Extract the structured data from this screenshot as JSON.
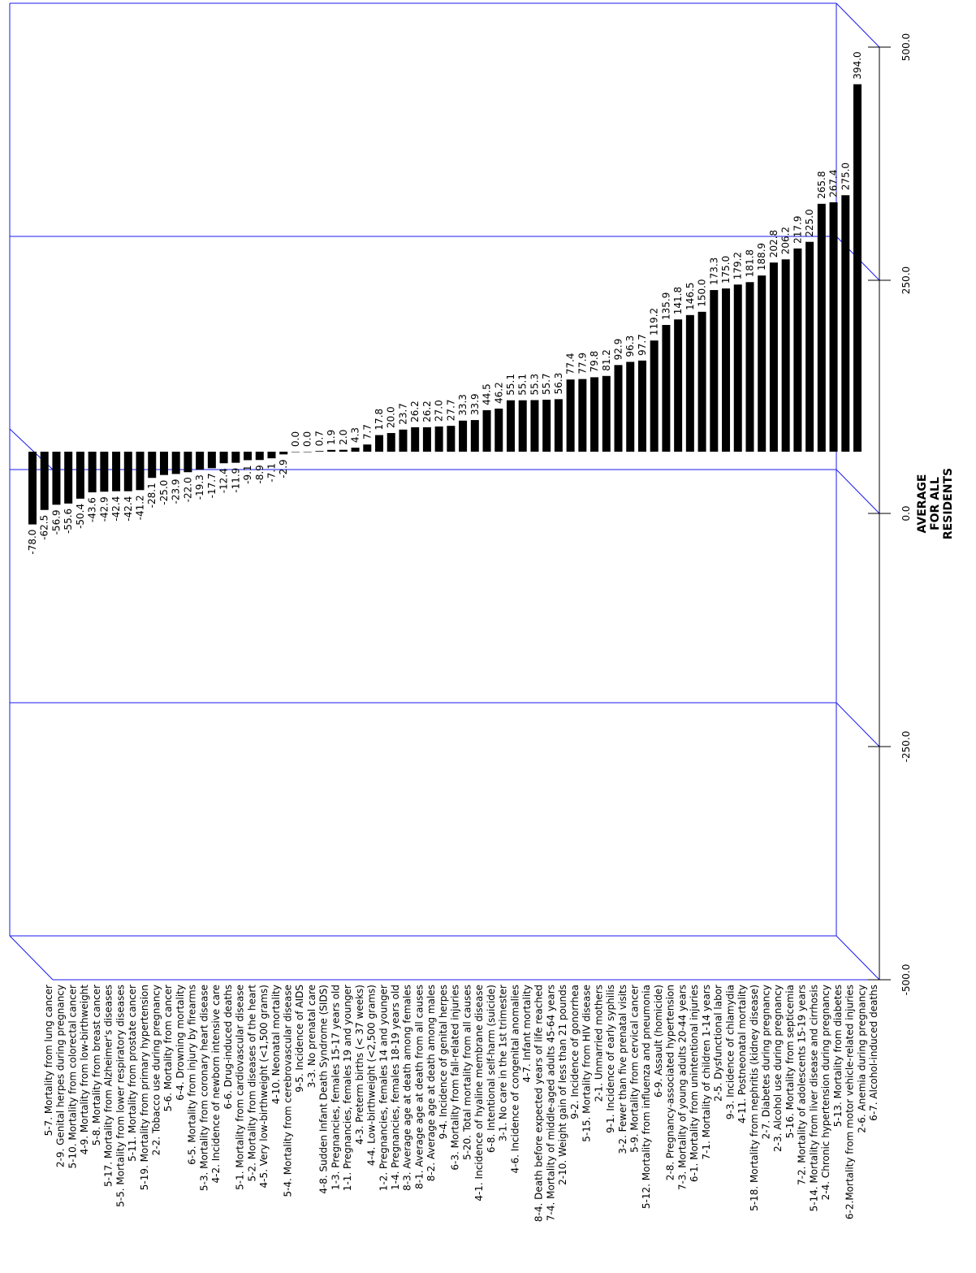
{
  "chart_data": {
    "type": "bar",
    "orientation": "horizontal",
    "xlabel": "AVERAGE FOR ALL RESIDENTS",
    "xlabel_lines": [
      "AVERAGE",
      "FOR ALL",
      "RESIDENTS"
    ],
    "xlim": [
      -500,
      500
    ],
    "ticks": [
      -500,
      -250,
      0,
      250,
      500
    ],
    "tick_labels": [
      "-500.0",
      "-250.0",
      "0.0",
      "250.0",
      "500.0"
    ],
    "grid": true,
    "colors": {
      "bar": "#000000",
      "frame": "#1a1aee"
    },
    "categories": [
      "5-7. Mortality from lung cancer",
      "2-9. Genital herpes during pregnancy",
      "5-10. Mortality from colorectal cancer",
      "4-9. Mortality from low-birthweight",
      "5-8. Mortality from breast cancer",
      "5-17. Mortality from Alzheimer's diseases",
      "5-5. Mortality from lower respiratory diseases",
      "5-11. Mortality from prostate cancer",
      "5-19. Mortality from primary hypertension",
      "2-2. Tobacco use during pregnancy",
      "5-6. Mortality from cancer",
      "6-4. Drowning mortality",
      "6-5. Mortality from injury by firearms",
      "5-3. Mortality from coronary heart disease",
      "4-2. Incidence of newborn intensive care",
      "6-6. Drug-induced deaths",
      "5-1. Mortality from cardiovascular disease",
      "5-2. Mortality from diseases of the heart",
      "4-5. Very low-birthweight (<1,500 grams)",
      "4-10. Neonatal mortality",
      "5-4. Mortality from cerebrovascular disease",
      "9-5. Incidence of AIDS",
      "3-3. No prenatal care",
      "4-8. Sudden Infant Death Syndrome (SIDS)",
      "1-3. Pregnancies, females 15-17 years old",
      "1-1. Pregnancies, females 19 and younger",
      "4-3. Preterm births (< 37 weeks)",
      "4-4. Low-birthweight (<2,500 grams)",
      "1-2. Pregnancies, females 14 and younger",
      "1-4. Pregnancies, females 18-19 years old",
      "8-3. Average age at death among females",
      "8-1. Average age at death from all causes",
      "8-2. Average age at death among males",
      "9-4. Incidence of genital herpes",
      "6-3. Mortality from fall-related injuries",
      "5-20. Total mortality from all causes",
      "4-1. Incidence of hyaline membrane disease",
      "6-8. Intentional self-harm (suicide)",
      "3-1. No care in the 1st trimester",
      "4-6. Incidence of congenital anomalies",
      "4-7. Infant mortality",
      "8-4. Death before expected years of life reached",
      "7-4. Mortality of middle-aged adults 45-64 years",
      "2-10. Weight gain of less than 21 pounds",
      "9-2. Incidence of gonorrhea",
      "5-15. Mortality from HIV disease",
      "2-1. Unmarried mothers",
      "9-1. Incidence of early syphilis",
      "3-2. Fewer than five prenatal visits",
      "5-9. Mortality from cervical cancer",
      "5-12. Mortality from influenza and pneumonia",
      "6-9. Assault (homicide)",
      "2-8. Pregnancy-associated hypertension",
      "7-3. Mortality of young adults 20-44 years",
      "6-1. Mortality from unintentional injuries",
      "7-1. Mortality of children 1-14 years",
      "2-5. Dysfunctional labor",
      "9-3. Incidence of chlamydia",
      "4-11. Postneonatal mortality",
      "5-18. Mortality from nephritis (kidney disease)",
      "2-7. Diabetes during pregnancy",
      "2-3. Alcohol use during pregnancy",
      "5-16. Mortality from septicemia",
      "7-2. Mortality of adolescents 15-19 years",
      "5-14. Mortality from liver disease and cirrhosis",
      "2-4. Chronic hypertension during pregnancy",
      "5-13. Mortality from diabetes",
      "6-2.Mortality from motor vehicle-related injuries",
      "2-6. Anemia during pregnancy",
      "6-7. Alcohol-induced deaths"
    ],
    "values": [
      -78.0,
      -62.5,
      -56.9,
      -55.6,
      -50.4,
      -43.6,
      -42.9,
      -42.4,
      -42.4,
      -41.2,
      -28.1,
      -25.0,
      -23.9,
      -22.0,
      -19.3,
      -17.7,
      -12.4,
      -11.9,
      -9.1,
      -8.9,
      -7.1,
      -2.9,
      0.0,
      0.0,
      0.7,
      1.9,
      2.0,
      4.3,
      7.7,
      17.8,
      20.0,
      23.7,
      26.2,
      26.2,
      27.0,
      27.7,
      33.3,
      33.9,
      44.5,
      46.2,
      55.1,
      55.1,
      55.3,
      55.7,
      56.3,
      77.4,
      77.9,
      79.8,
      81.2,
      92.9,
      96.3,
      97.7,
      119.2,
      135.9,
      141.8,
      146.5,
      150.0,
      173.3,
      175.0,
      179.2,
      181.8,
      188.9,
      202.8,
      206.2,
      217.9,
      225.0,
      265.8,
      267.4,
      275.0,
      394.0
    ],
    "value_labels": [
      "-78.0",
      "-62.5",
      "-56.9",
      "-55.6",
      "-50.4",
      "-43.6",
      "-42.9",
      "-42.4",
      "-42.4",
      "-41.2",
      "-28.1",
      "-25.0",
      "-23.9",
      "-22.0",
      "-19.3",
      "-17.7",
      "-12.4",
      "-11.9",
      "-9.1",
      "-8.9",
      "-7.1",
      "-2.9",
      "0.0",
      "0.0",
      "0.7",
      "1.9",
      "2.0",
      "4.3",
      "7.7",
      "17.8",
      "20.0",
      "23.7",
      "26.2",
      "26.2",
      "27.0",
      "27.7",
      "33.3",
      "33.9",
      "44.5",
      "46.2",
      "55.1",
      "55.1",
      "55.3",
      "55.7",
      "56.3",
      "77.4",
      "77.9",
      "79.8",
      "81.2",
      "92.9",
      "96.3",
      "97.7",
      "119.2",
      "135.9",
      "141.8",
      "146.5",
      "150.0",
      "173.3",
      "175.0",
      "179.2",
      "181.8",
      "188.9",
      "202.8",
      "206.2",
      "217.9",
      "225.0",
      "265.8",
      "267.4",
      "275.0",
      "394.0"
    ]
  }
}
